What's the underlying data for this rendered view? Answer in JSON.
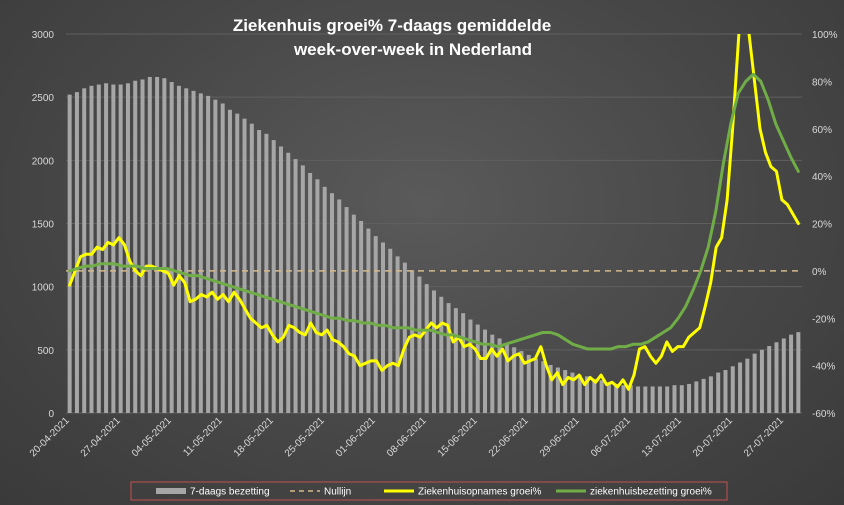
{
  "chart_data": {
    "type": "bar+line",
    "title_lines": [
      "Ziekenhuis groei% 7-daags gemiddelde",
      "week-over-week in Nederland"
    ],
    "y_left": {
      "min": 0,
      "max": 3000,
      "ticks": [
        "0",
        "500",
        "1000",
        "1500",
        "2000",
        "2500",
        "3000"
      ]
    },
    "y_right": {
      "min": -60,
      "max": 100,
      "ticks": [
        "-60%",
        "-40%",
        "-20%",
        "0%",
        "20%",
        "40%",
        "60%",
        "80%",
        "100%"
      ]
    },
    "x_start": "20-04-2021",
    "x_ticks": [
      "20-04-2021",
      "27-04-2021",
      "04-05-2021",
      "11-05-2021",
      "18-05-2021",
      "25-05-2021",
      "01-06-2021",
      "08-06-2021",
      "15-06-2021",
      "22-06-2021",
      "29-06-2021",
      "06-07-2021",
      "13-07-2021",
      "20-07-2021",
      "27-07-2021"
    ],
    "grid": true,
    "legend_position": "bottom",
    "series": [
      {
        "name": "7-daags bezetting",
        "kind": "bar",
        "axis": "left",
        "color": "#a6a6a6",
        "values": [
          2520,
          2540,
          2570,
          2590,
          2600,
          2610,
          2600,
          2600,
          2610,
          2630,
          2640,
          2660,
          2660,
          2650,
          2620,
          2590,
          2570,
          2550,
          2530,
          2510,
          2480,
          2450,
          2400,
          2370,
          2330,
          2290,
          2240,
          2210,
          2160,
          2110,
          2060,
          2010,
          1960,
          1900,
          1850,
          1790,
          1740,
          1690,
          1630,
          1570,
          1520,
          1460,
          1400,
          1350,
          1300,
          1240,
          1190,
          1130,
          1080,
          1020,
          970,
          920,
          870,
          830,
          790,
          740,
          700,
          660,
          620,
          590,
          550,
          520,
          490,
          460,
          430,
          410,
          380,
          360,
          340,
          320,
          300,
          290,
          270,
          260,
          240,
          230,
          220,
          220,
          210,
          210,
          210,
          210,
          210,
          220,
          220,
          230,
          250,
          270,
          290,
          320,
          340,
          370,
          400,
          430,
          470,
          500,
          530,
          560,
          590,
          620,
          640
        ]
      },
      {
        "name": "Nullijn",
        "kind": "line",
        "axis": "right",
        "color": "#d6b98a",
        "dashed": true,
        "value": 0
      },
      {
        "name": "Ziekenhuisopnames groei%",
        "kind": "line",
        "axis": "right",
        "color": "#ffff00",
        "values": [
          -6,
          0,
          6,
          7,
          7,
          10,
          9,
          12,
          11,
          14,
          11,
          4,
          0,
          -2,
          2,
          2,
          1,
          0,
          -1,
          -6,
          -2,
          -5,
          -13,
          -12,
          -10,
          -11,
          -9,
          -12,
          -10,
          -13,
          -9,
          -12,
          -16,
          -20,
          -22,
          -24,
          -23,
          -27,
          -30,
          -28,
          -23,
          -24,
          -26,
          -27,
          -22,
          -26,
          -27,
          -25,
          -29,
          -30,
          -32,
          -35,
          -36,
          -40,
          -39,
          -38,
          -38,
          -42,
          -40,
          -39,
          -40,
          -33,
          -28,
          -27,
          -28,
          -25,
          -22,
          -24,
          -22,
          -23,
          -30,
          -28,
          -32,
          -31,
          -33,
          -37,
          -37,
          -33,
          -36,
          -33,
          -38,
          -36,
          -35,
          -39,
          -38,
          -37,
          -32,
          -40,
          -46,
          -43,
          -48,
          -45,
          -46,
          -44,
          -48,
          -45,
          -47,
          -44,
          -48,
          -47,
          -49,
          -46,
          -50,
          -44,
          -33,
          -32,
          -36,
          -39,
          -36,
          -30,
          -34,
          -32,
          -32,
          -28,
          -26,
          -24,
          -15,
          -5,
          10,
          14,
          30,
          60,
          95,
          130,
          100,
          80,
          60,
          50,
          44,
          42,
          30,
          28,
          24,
          20
        ]
      },
      {
        "name": "ziekenhuisbezetting groei%",
        "kind": "line",
        "axis": "right",
        "color": "#70ad47",
        "values": [
          0,
          1,
          2,
          2,
          3,
          3,
          3,
          2,
          2,
          2,
          1,
          1,
          1,
          1,
          0,
          -1,
          -2,
          -2,
          -3,
          -4,
          -5,
          -6,
          -7,
          -8,
          -9,
          -10,
          -11,
          -12,
          -13,
          -14,
          -15,
          -16,
          -17,
          -18,
          -19,
          -20,
          -20,
          -21,
          -21,
          -22,
          -22,
          -23,
          -23,
          -24,
          -24,
          -24,
          -25,
          -25,
          -25,
          -26,
          -27,
          -27,
          -28,
          -29,
          -30,
          -31,
          -31,
          -32,
          -31,
          -30,
          -29,
          -28,
          -27,
          -26,
          -26,
          -27,
          -29,
          -31,
          -32,
          -33,
          -33,
          -33,
          -33,
          -32,
          -32,
          -31,
          -31,
          -30,
          -28,
          -26,
          -24,
          -20,
          -15,
          -8,
          0,
          10,
          25,
          45,
          62,
          75,
          80,
          83,
          80,
          72,
          62,
          55,
          48,
          42
        ]
      }
    ]
  }
}
